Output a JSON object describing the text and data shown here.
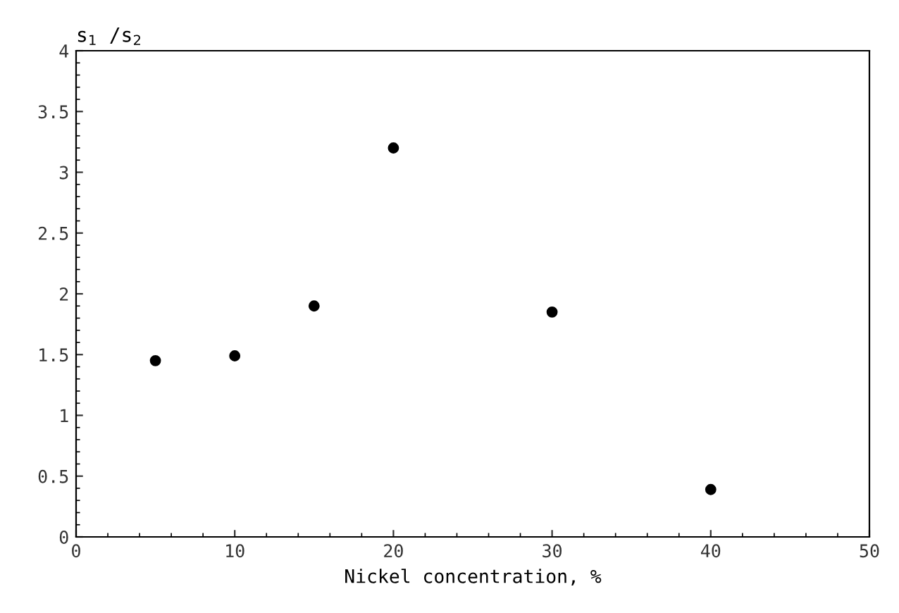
{
  "chart_data": {
    "type": "scatter",
    "xlabel": "Nickel concentration, %",
    "ylabel": "s$_{1}$ /s$_{2}$",
    "x": [
      5,
      10,
      15,
      20,
      30,
      40
    ],
    "series": [
      {
        "color": "#000000",
        "values": [
          1.45,
          1.49,
          1.9,
          3.2,
          1.85,
          0.39
        ]
      }
    ],
    "marker": "circle",
    "xlim": [
      0,
      50
    ],
    "ylim": [
      0,
      4
    ],
    "xticks": [
      0,
      10,
      20,
      30,
      40,
      50
    ],
    "yticks": [
      0,
      0.5,
      1,
      1.5,
      2,
      2.5,
      3,
      3.5,
      4
    ],
    "grid": false
  }
}
